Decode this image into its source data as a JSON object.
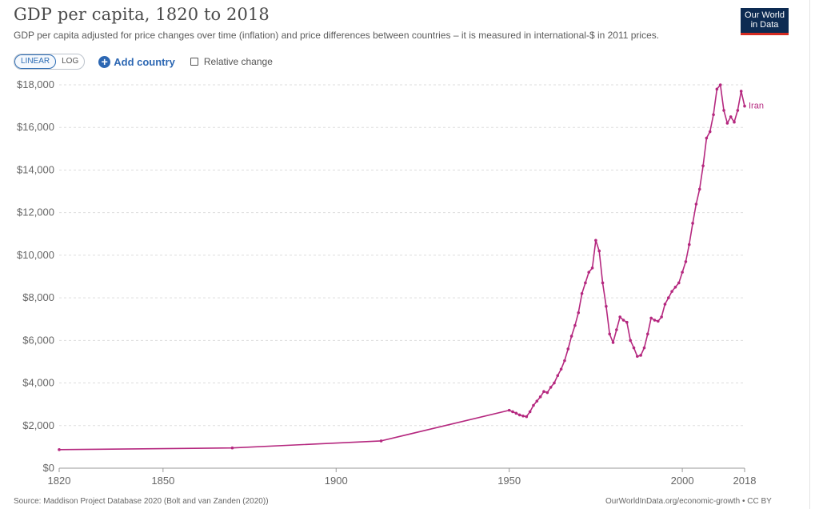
{
  "header": {
    "title": "GDP per capita, 1820 to 2018",
    "subtitle": "GDP per capita adjusted for price changes over time (inflation) and price differences between countries – it is measured in international-$ in 2011 prices."
  },
  "logo": {
    "line1": "Our World",
    "line2": "in Data"
  },
  "controls": {
    "linear_label": "LINEAR",
    "log_label": "LOG",
    "add_country_label": "Add country",
    "relative_change_label": "Relative change"
  },
  "footer": {
    "source": "Source: Maddison Project Database 2020 (Bolt and van Zanden (2020))",
    "url": "OurWorldInData.org/economic-growth • CC BY"
  },
  "colors": {
    "series": "#b5287f",
    "grid": "#dddddd",
    "axis_text": "#666666",
    "logo_bg": "#0d2b52",
    "logo_bar": "#d42b21",
    "accent": "#2c67b3"
  },
  "chart_data": {
    "type": "line",
    "title": "GDP per capita, 1820 to 2018",
    "xlabel": "",
    "ylabel": "",
    "xlim": [
      1820,
      2018
    ],
    "ylim": [
      0,
      18000
    ],
    "grid": true,
    "y_tick_values": [
      0,
      2000,
      4000,
      6000,
      8000,
      10000,
      12000,
      14000,
      16000,
      18000
    ],
    "y_tick_labels": [
      "$0",
      "$2,000",
      "$4,000",
      "$6,000",
      "$8,000",
      "$10,000",
      "$12,000",
      "$14,000",
      "$16,000",
      "$18,000"
    ],
    "x_tick_values": [
      1820,
      1850,
      1900,
      1950,
      2000,
      2018
    ],
    "x_tick_labels": [
      "1820",
      "1850",
      "1900",
      "1950",
      "2000",
      "2018"
    ],
    "series": [
      {
        "name": "Iran",
        "color": "#b5287f",
        "x": [
          1820,
          1870,
          1913,
          1950,
          1951,
          1952,
          1953,
          1954,
          1955,
          1956,
          1957,
          1958,
          1959,
          1960,
          1961,
          1962,
          1963,
          1964,
          1965,
          1966,
          1967,
          1968,
          1969,
          1970,
          1971,
          1972,
          1973,
          1974,
          1975,
          1976,
          1977,
          1978,
          1979,
          1980,
          1981,
          1982,
          1983,
          1984,
          1985,
          1986,
          1987,
          1988,
          1989,
          1990,
          1991,
          1992,
          1993,
          1994,
          1995,
          1996,
          1997,
          1998,
          1999,
          2000,
          2001,
          2002,
          2003,
          2004,
          2005,
          2006,
          2007,
          2008,
          2009,
          2010,
          2011,
          2012,
          2013,
          2014,
          2015,
          2016,
          2017,
          2018
        ],
        "y": [
          870,
          950,
          1280,
          2720,
          2650,
          2580,
          2500,
          2450,
          2420,
          2650,
          2950,
          3150,
          3350,
          3600,
          3550,
          3800,
          4000,
          4350,
          4650,
          5050,
          5600,
          6200,
          6700,
          7300,
          8200,
          8700,
          9200,
          9400,
          10700,
          10200,
          8700,
          7600,
          6300,
          5900,
          6500,
          7100,
          6950,
          6850,
          6000,
          5650,
          5250,
          5300,
          5650,
          6300,
          7050,
          6950,
          6900,
          7100,
          7700,
          8000,
          8300,
          8500,
          8700,
          9200,
          9700,
          10500,
          11500,
          12400,
          13100,
          14200,
          15500,
          15800,
          16600,
          17800,
          18000,
          16800,
          16200,
          16500,
          16250,
          16800,
          17700,
          17000
        ]
      }
    ]
  }
}
